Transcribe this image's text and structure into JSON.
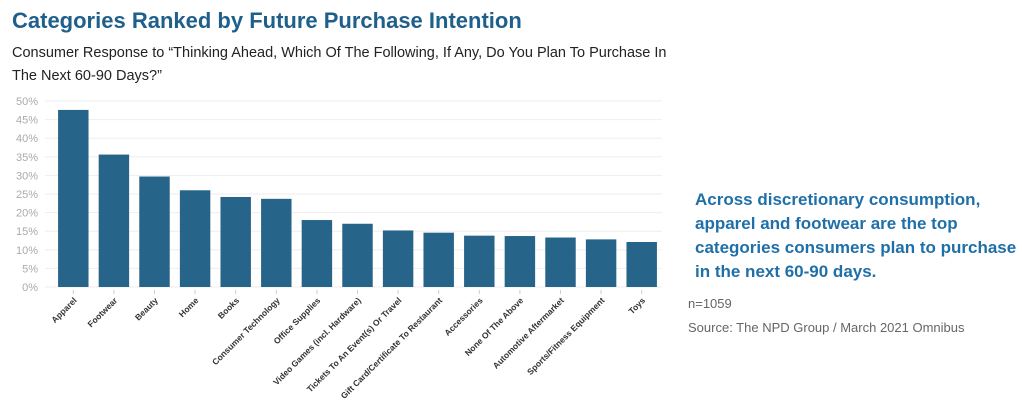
{
  "title": "Categories Ranked by Future Purchase Intention",
  "subtitle": "Consumer Response to “Thinking Ahead, Which Of The Following, If Any, Do You Plan To Purchase In The Next 60-90 Days?”",
  "callout": "Across discretionary consumption, apparel and footwear are the top categories consumers plan to purchase in the next 60-90 days.",
  "sample_size": "n=1059",
  "source": "Source: The NPD Group / March 2021 Omnibus",
  "chart_data": {
    "type": "bar",
    "categories": [
      "Apparel",
      "Footwear",
      "Beauty",
      "Home",
      "Books",
      "Consumer Technology",
      "Office Supplies",
      "Video Games (incl. Hardware)",
      "Tickets To An Event(s) Or Travel",
      "Gift Card/Certificate To Restaurant",
      "Accessories",
      "None Of The Above",
      "Automotive Aftermarket",
      "Sports/Fitness Equipment",
      "Toys"
    ],
    "values": [
      47.6,
      35.6,
      29.7,
      26.0,
      24.2,
      23.7,
      18.0,
      17.0,
      15.2,
      14.6,
      13.8,
      13.7,
      13.3,
      12.8,
      12.1
    ],
    "yticks": [
      "0%",
      "5%",
      "10%",
      "15%",
      "20%",
      "25%",
      "30%",
      "35%",
      "40%",
      "45%",
      "50%"
    ],
    "ylim": [
      0,
      50
    ],
    "grid": true,
    "bar_color": "#266489"
  }
}
